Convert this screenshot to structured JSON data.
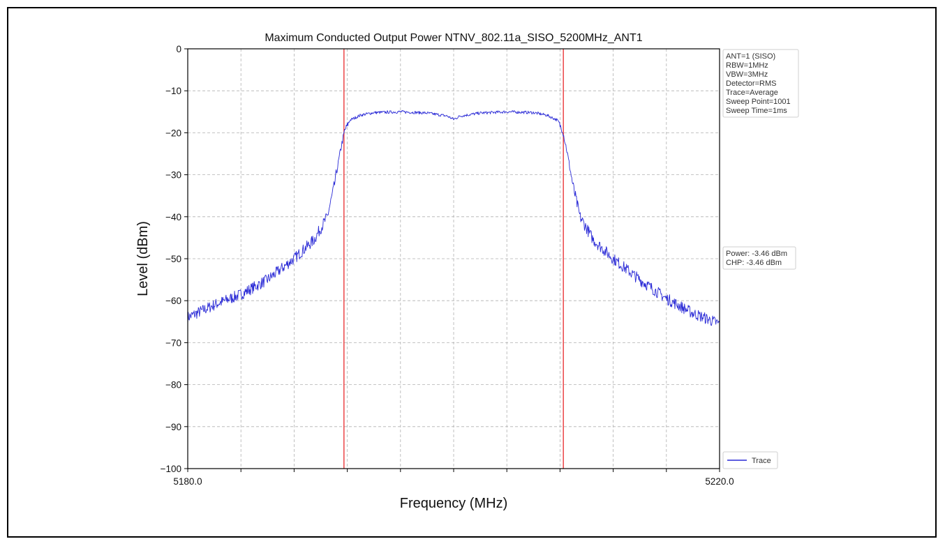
{
  "chart_data": {
    "type": "line",
    "title": "Maximum Conducted Output Power NTNV_802.11a_SISO_5200MHz_ANT1",
    "xlabel": "Frequency (MHz)",
    "ylabel": "Level (dBm)",
    "xlim": [
      5180.0,
      5220.0
    ],
    "ylim": [
      -100,
      0
    ],
    "x_tick_labels": [
      {
        "value": 5180.0,
        "label": "5180.0"
      },
      {
        "value": 5220.0,
        "label": "5220.0"
      }
    ],
    "x_minor_ticks": [
      5184,
      5188,
      5192,
      5196,
      5200,
      5204,
      5208,
      5212,
      5216
    ],
    "y_ticks": [
      0,
      -10,
      -20,
      -30,
      -40,
      -50,
      -60,
      -70,
      -80,
      -90,
      -100
    ],
    "grid": true,
    "legend": {
      "placement": "bottom-right",
      "entries": [
        "Trace"
      ]
    },
    "info_box_1": [
      "ANT=1 (SISO)",
      "RBW=1MHz",
      "VBW=3MHz",
      "Detector=RMS",
      "Trace=Average",
      "Sweep Point=1001",
      "Sweep Time=1ms"
    ],
    "info_box_2": [
      "Power: -3.46 dBm",
      "CHP: -3.46 dBm"
    ],
    "markers": [
      {
        "x": 5191.75,
        "color": "#e8282a"
      },
      {
        "x": 5208.25,
        "color": "#e8282a"
      }
    ],
    "series": [
      {
        "name": "Trace",
        "color": "#2a2ad6",
        "points": [
          [
            5180.0,
            -64.0
          ],
          [
            5182.0,
            -61.0
          ],
          [
            5184.0,
            -58.5
          ],
          [
            5186.0,
            -55.0
          ],
          [
            5188.0,
            -50.0
          ],
          [
            5189.5,
            -45.5
          ],
          [
            5190.5,
            -40.0
          ],
          [
            5191.0,
            -33.0
          ],
          [
            5191.5,
            -24.0
          ],
          [
            5191.8,
            -19.5
          ],
          [
            5192.2,
            -17.0
          ],
          [
            5193.0,
            -15.8
          ],
          [
            5194.0,
            -15.2
          ],
          [
            5196.0,
            -15.0
          ],
          [
            5198.0,
            -15.3
          ],
          [
            5199.5,
            -16.0
          ],
          [
            5200.0,
            -16.8
          ],
          [
            5200.5,
            -16.0
          ],
          [
            5202.0,
            -15.3
          ],
          [
            5204.0,
            -15.0
          ],
          [
            5206.0,
            -15.2
          ],
          [
            5207.0,
            -15.8
          ],
          [
            5207.8,
            -17.0
          ],
          [
            5208.2,
            -19.5
          ],
          [
            5208.5,
            -24.0
          ],
          [
            5209.0,
            -33.0
          ],
          [
            5209.5,
            -40.0
          ],
          [
            5210.5,
            -45.5
          ],
          [
            5212.0,
            -50.0
          ],
          [
            5214.0,
            -55.0
          ],
          [
            5216.0,
            -59.5
          ],
          [
            5218.0,
            -63.0
          ],
          [
            5220.0,
            -65.5
          ]
        ]
      }
    ]
  }
}
